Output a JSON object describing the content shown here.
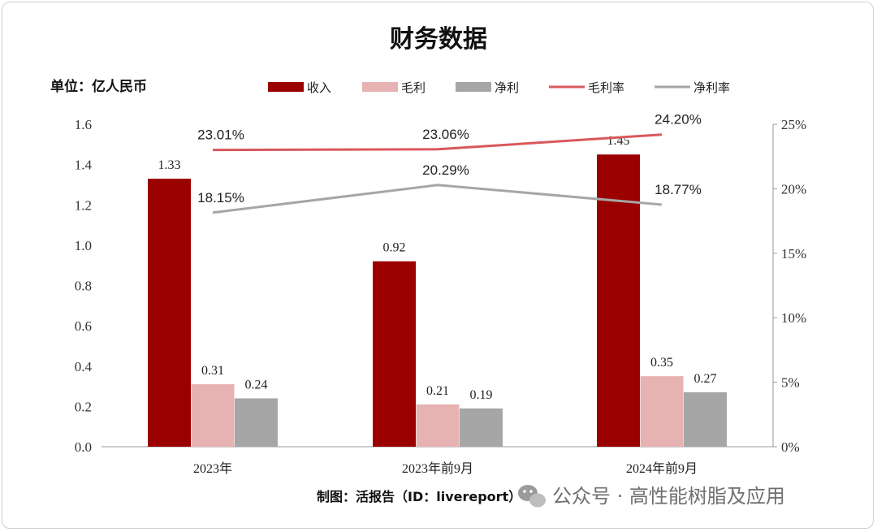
{
  "chart_data": {
    "type": "bar",
    "title": "财务数据",
    "unit_label": "单位：亿人民币",
    "categories": [
      "2023年",
      "2023年前9月",
      "2024年前9月"
    ],
    "bar_series": [
      {
        "name": "收入",
        "color": "#9b0000",
        "values": [
          1.33,
          0.92,
          1.45
        ]
      },
      {
        "name": "毛利",
        "color": "#e7b2b2",
        "values": [
          0.31,
          0.21,
          0.35
        ]
      },
      {
        "name": "净利",
        "color": "#a6a6a6",
        "values": [
          0.24,
          0.19,
          0.27
        ]
      }
    ],
    "line_series": [
      {
        "name": "毛利率",
        "color": "#d9585b",
        "values": [
          23.01,
          23.06,
          24.2
        ],
        "labels": [
          "23.01%",
          "23.06%",
          "24.20%"
        ]
      },
      {
        "name": "净利率",
        "color": "#a6a6a6",
        "values": [
          18.15,
          20.29,
          18.77
        ],
        "labels": [
          "18.15%",
          "20.29%",
          "18.77%"
        ]
      }
    ],
    "y_left": {
      "range": [
        0,
        1.6
      ],
      "ticks": [
        "0.0",
        "0.2",
        "0.4",
        "0.6",
        "0.8",
        "1.0",
        "1.2",
        "1.4",
        "1.6"
      ]
    },
    "y_right": {
      "range": [
        0,
        25
      ],
      "ticks": [
        "0%",
        "5%",
        "10%",
        "15%",
        "20%",
        "25%"
      ]
    },
    "legend_position": "top",
    "grid": false
  },
  "footer": {
    "source": "制图：活报告（ID：livereport）",
    "watermark": "公众号 · 高性能树脂及应用"
  }
}
